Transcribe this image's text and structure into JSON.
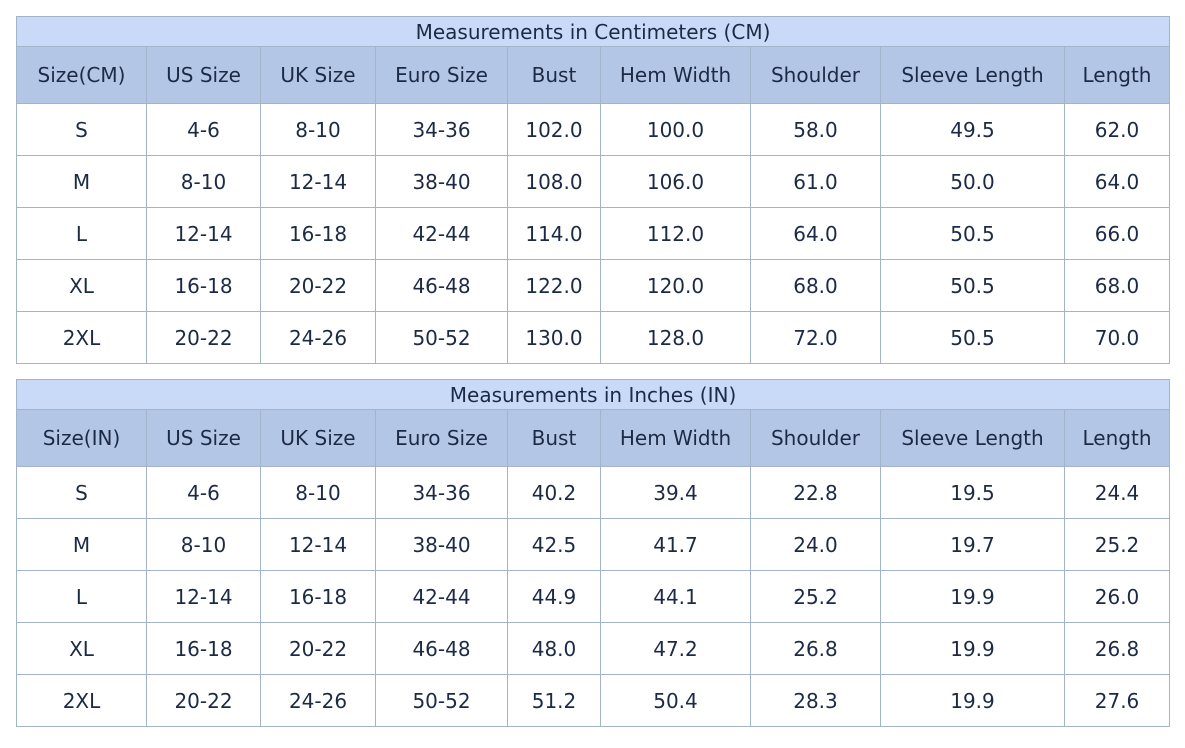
{
  "tables": [
    {
      "title": "Measurements in Centimeters (CM)",
      "header": [
        "Size(CM)",
        "US Size",
        "UK Size",
        "Euro Size",
        "Bust",
        "Hem Width",
        "Shoulder",
        "Sleeve Length",
        "Length"
      ],
      "rows": [
        [
          "S",
          "4-6",
          "8-10",
          "34-36",
          "102.0",
          "100.0",
          "58.0",
          "49.5",
          "62.0"
        ],
        [
          "M",
          "8-10",
          "12-14",
          "38-40",
          "108.0",
          "106.0",
          "61.0",
          "50.0",
          "64.0"
        ],
        [
          "L",
          "12-14",
          "16-18",
          "42-44",
          "114.0",
          "112.0",
          "64.0",
          "50.5",
          "66.0"
        ],
        [
          "XL",
          "16-18",
          "20-22",
          "46-48",
          "122.0",
          "120.0",
          "68.0",
          "50.5",
          "68.0"
        ],
        [
          "2XL",
          "20-22",
          "24-26",
          "50-52",
          "130.0",
          "128.0",
          "72.0",
          "50.5",
          "70.0"
        ]
      ]
    },
    {
      "title": "Measurements in Inches (IN)",
      "header": [
        "Size(IN)",
        "US Size",
        "UK Size",
        "Euro Size",
        "Bust",
        "Hem Width",
        "Shoulder",
        "Sleeve Length",
        "Length"
      ],
      "rows": [
        [
          "S",
          "4-6",
          "8-10",
          "34-36",
          "40.2",
          "39.4",
          "22.8",
          "19.5",
          "24.4"
        ],
        [
          "M",
          "8-10",
          "12-14",
          "38-40",
          "42.5",
          "41.7",
          "24.0",
          "19.7",
          "25.2"
        ],
        [
          "L",
          "12-14",
          "16-18",
          "42-44",
          "44.9",
          "44.1",
          "25.2",
          "19.9",
          "26.0"
        ],
        [
          "XL",
          "16-18",
          "20-22",
          "46-48",
          "48.0",
          "47.2",
          "26.8",
          "19.9",
          "26.8"
        ],
        [
          "2XL",
          "20-22",
          "24-26",
          "50-52",
          "51.2",
          "50.4",
          "28.3",
          "19.9",
          "27.6"
        ]
      ]
    }
  ]
}
